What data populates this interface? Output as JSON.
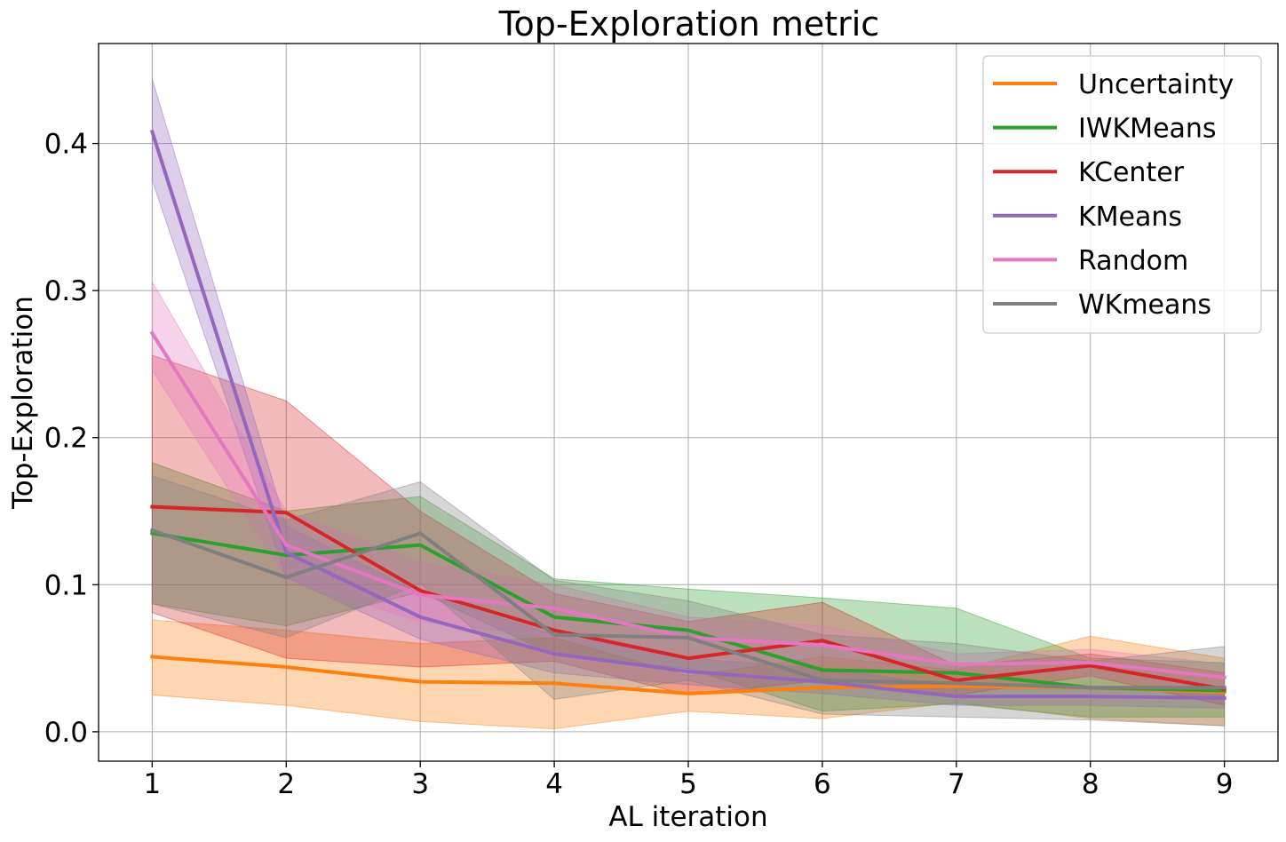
{
  "chart_data": {
    "type": "line",
    "title": "Top-Exploration metric",
    "xlabel": "AL iteration",
    "ylabel": "Top-Exploration",
    "x": [
      1,
      2,
      3,
      4,
      5,
      6,
      7,
      8,
      9
    ],
    "xticks": [
      "1",
      "2",
      "3",
      "4",
      "5",
      "6",
      "7",
      "8",
      "9"
    ],
    "yticks": [
      "0.0",
      "0.1",
      "0.2",
      "0.3",
      "0.4"
    ],
    "ytick_values": [
      0.0,
      0.1,
      0.2,
      0.3,
      0.4
    ],
    "xlim": [
      0.6,
      9.4
    ],
    "ylim": [
      -0.02,
      0.468
    ],
    "grid": true,
    "legend_position": "top-right",
    "series": [
      {
        "name": "Uncertainty",
        "color": "#ff7f0e",
        "values": [
          0.051,
          0.044,
          0.034,
          0.033,
          0.026,
          0.03,
          0.031,
          0.03,
          0.027
        ],
        "lower": [
          0.025,
          0.018,
          0.007,
          0.002,
          0.014,
          0.009,
          0.02,
          0.009,
          0.004
        ],
        "upper": [
          0.076,
          0.069,
          0.06,
          0.064,
          0.038,
          0.051,
          0.042,
          0.065,
          0.05
        ]
      },
      {
        "name": "IWKMeans",
        "color": "#2ca02c",
        "values": [
          0.135,
          0.12,
          0.127,
          0.078,
          0.069,
          0.042,
          0.04,
          0.03,
          0.028
        ],
        "lower": [
          0.087,
          0.072,
          0.095,
          0.052,
          0.043,
          0.014,
          0.019,
          0.01,
          0.01
        ],
        "upper": [
          0.183,
          0.15,
          0.16,
          0.104,
          0.097,
          0.091,
          0.084,
          0.05,
          0.047
        ]
      },
      {
        "name": "KCenter",
        "color": "#d62728",
        "values": [
          0.153,
          0.149,
          0.096,
          0.069,
          0.05,
          0.062,
          0.035,
          0.045,
          0.029
        ],
        "lower": [
          0.081,
          0.05,
          0.044,
          0.048,
          0.025,
          0.035,
          0.025,
          0.038,
          0.018
        ],
        "upper": [
          0.256,
          0.225,
          0.15,
          0.094,
          0.075,
          0.088,
          0.045,
          0.053,
          0.04
        ]
      },
      {
        "name": "KMeans",
        "color": "#9467bd",
        "values": [
          0.408,
          0.122,
          0.078,
          0.053,
          0.041,
          0.034,
          0.024,
          0.024,
          0.023
        ],
        "lower": [
          0.375,
          0.105,
          0.063,
          0.04,
          0.032,
          0.026,
          0.018,
          0.018,
          0.016
        ],
        "upper": [
          0.444,
          0.14,
          0.094,
          0.066,
          0.05,
          0.043,
          0.031,
          0.03,
          0.03
        ]
      },
      {
        "name": "Random",
        "color": "#e377c2",
        "values": [
          0.271,
          0.127,
          0.093,
          0.084,
          0.064,
          0.059,
          0.046,
          0.047,
          0.037
        ],
        "lower": [
          0.246,
          0.104,
          0.075,
          0.064,
          0.049,
          0.046,
          0.039,
          0.038,
          0.028
        ],
        "upper": [
          0.306,
          0.15,
          0.115,
          0.1,
          0.078,
          0.072,
          0.053,
          0.056,
          0.046
        ]
      },
      {
        "name": "WKmeans",
        "color": "#7f7f7f",
        "values": [
          0.137,
          0.105,
          0.135,
          0.066,
          0.064,
          0.035,
          0.033,
          0.03,
          0.03
        ],
        "lower": [
          0.087,
          0.064,
          0.101,
          0.022,
          0.035,
          0.012,
          0.01,
          0.008,
          0.004
        ],
        "upper": [
          0.174,
          0.144,
          0.17,
          0.103,
          0.089,
          0.066,
          0.06,
          0.048,
          0.058
        ]
      }
    ]
  }
}
